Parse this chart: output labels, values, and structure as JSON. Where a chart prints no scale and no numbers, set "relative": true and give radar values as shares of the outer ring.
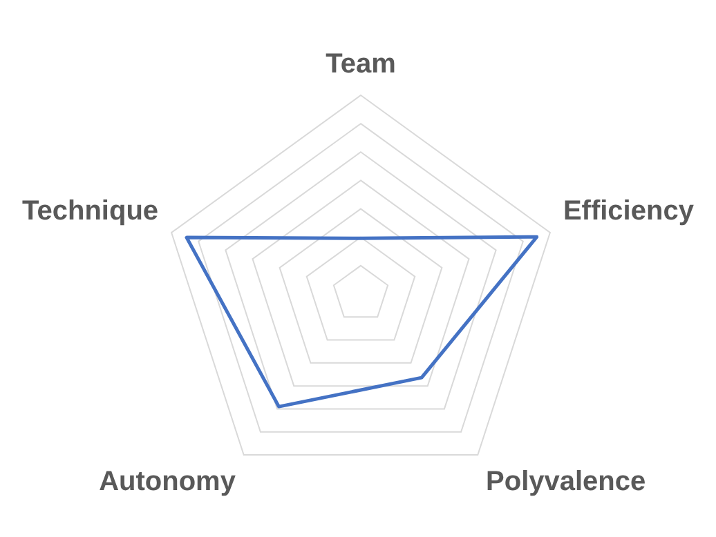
{
  "chart_data": {
    "type": "radar",
    "relative": true,
    "categories": [
      "Team",
      "Efficiency",
      "Polyvalence",
      "Autonomy",
      "Technique"
    ],
    "series": [
      {
        "color": "#4472c4",
        "values": [
          0.28,
          0.93,
          0.52,
          0.7,
          0.92
        ]
      }
    ],
    "grid": true,
    "legend": false,
    "marker": "none",
    "line_style": "solid"
  }
}
